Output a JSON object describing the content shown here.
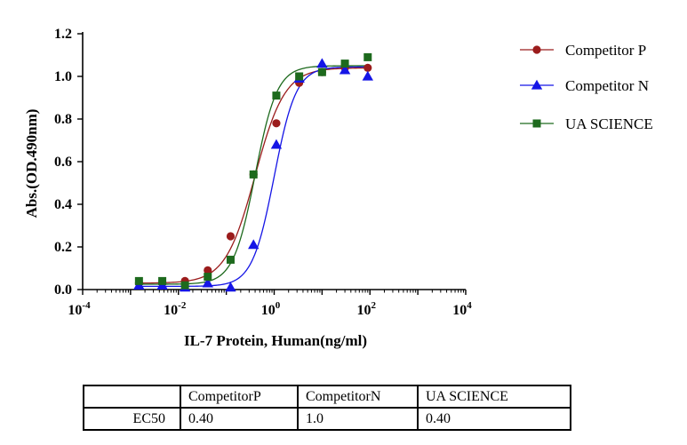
{
  "chart_data": {
    "type": "line",
    "xlabel": "IL-7 Protein, Human(ng/ml)",
    "ylabel": "Abs.(OD.490nm)",
    "xscale": "log",
    "xlim": [
      0.0001,
      10000
    ],
    "ylim": [
      0,
      1.2
    ],
    "x_tick_labels": [
      {
        "base": "10",
        "exp": "-4"
      },
      {
        "base": "10",
        "exp": "-2"
      },
      {
        "base": "10",
        "exp": "0"
      },
      {
        "base": "10",
        "exp": "2"
      },
      {
        "base": "10",
        "exp": "4"
      }
    ],
    "y_tick_labels": [
      "0.0",
      "0.2",
      "0.4",
      "0.6",
      "0.8",
      "1.0",
      "1.2"
    ],
    "legend_position": "right",
    "grid": false,
    "series": [
      {
        "name": "Competitor P",
        "marker": "circle",
        "color": "#9b1c1c",
        "x": [
          0.0015,
          0.0046,
          0.0137,
          0.041,
          0.123,
          0.37,
          1.11,
          3.33,
          10,
          30,
          90
        ],
        "y": [
          0.03,
          0.03,
          0.04,
          0.09,
          0.25,
          0.54,
          0.78,
          0.97,
          1.02,
          1.04,
          1.04
        ],
        "fit": {
          "bottom": 0.03,
          "top": 1.04,
          "ec50": 0.4,
          "hill": 1.4
        }
      },
      {
        "name": "Competitor N",
        "marker": "triangle",
        "color": "#1515e6",
        "x": [
          0.0015,
          0.0046,
          0.0137,
          0.041,
          0.123,
          0.37,
          1.11,
          3.33,
          10,
          30,
          90
        ],
        "y": [
          0.02,
          0.02,
          0.01,
          0.03,
          0.01,
          0.21,
          0.68,
          0.99,
          1.06,
          1.03,
          1.0
        ],
        "fit": {
          "bottom": 0.015,
          "top": 1.045,
          "ec50": 1.0,
          "hill": 1.9
        }
      },
      {
        "name": "UA SCIENCE",
        "marker": "square",
        "color": "#1d6a1d",
        "x": [
          0.0015,
          0.0046,
          0.0137,
          0.041,
          0.123,
          0.37,
          1.11,
          3.33,
          10,
          30,
          90
        ],
        "y": [
          0.04,
          0.04,
          0.02,
          0.06,
          0.14,
          0.54,
          0.91,
          1.0,
          1.02,
          1.06,
          1.09
        ],
        "fit": {
          "bottom": 0.025,
          "top": 1.05,
          "ec50": 0.4,
          "hill": 1.9
        }
      }
    ]
  },
  "ec50_table": {
    "header": [
      "",
      "CompetitorP",
      "CompetitorN",
      "UA SCIENCE"
    ],
    "row": [
      "EC50",
      "0.40",
      "1.0",
      "0.40"
    ]
  }
}
